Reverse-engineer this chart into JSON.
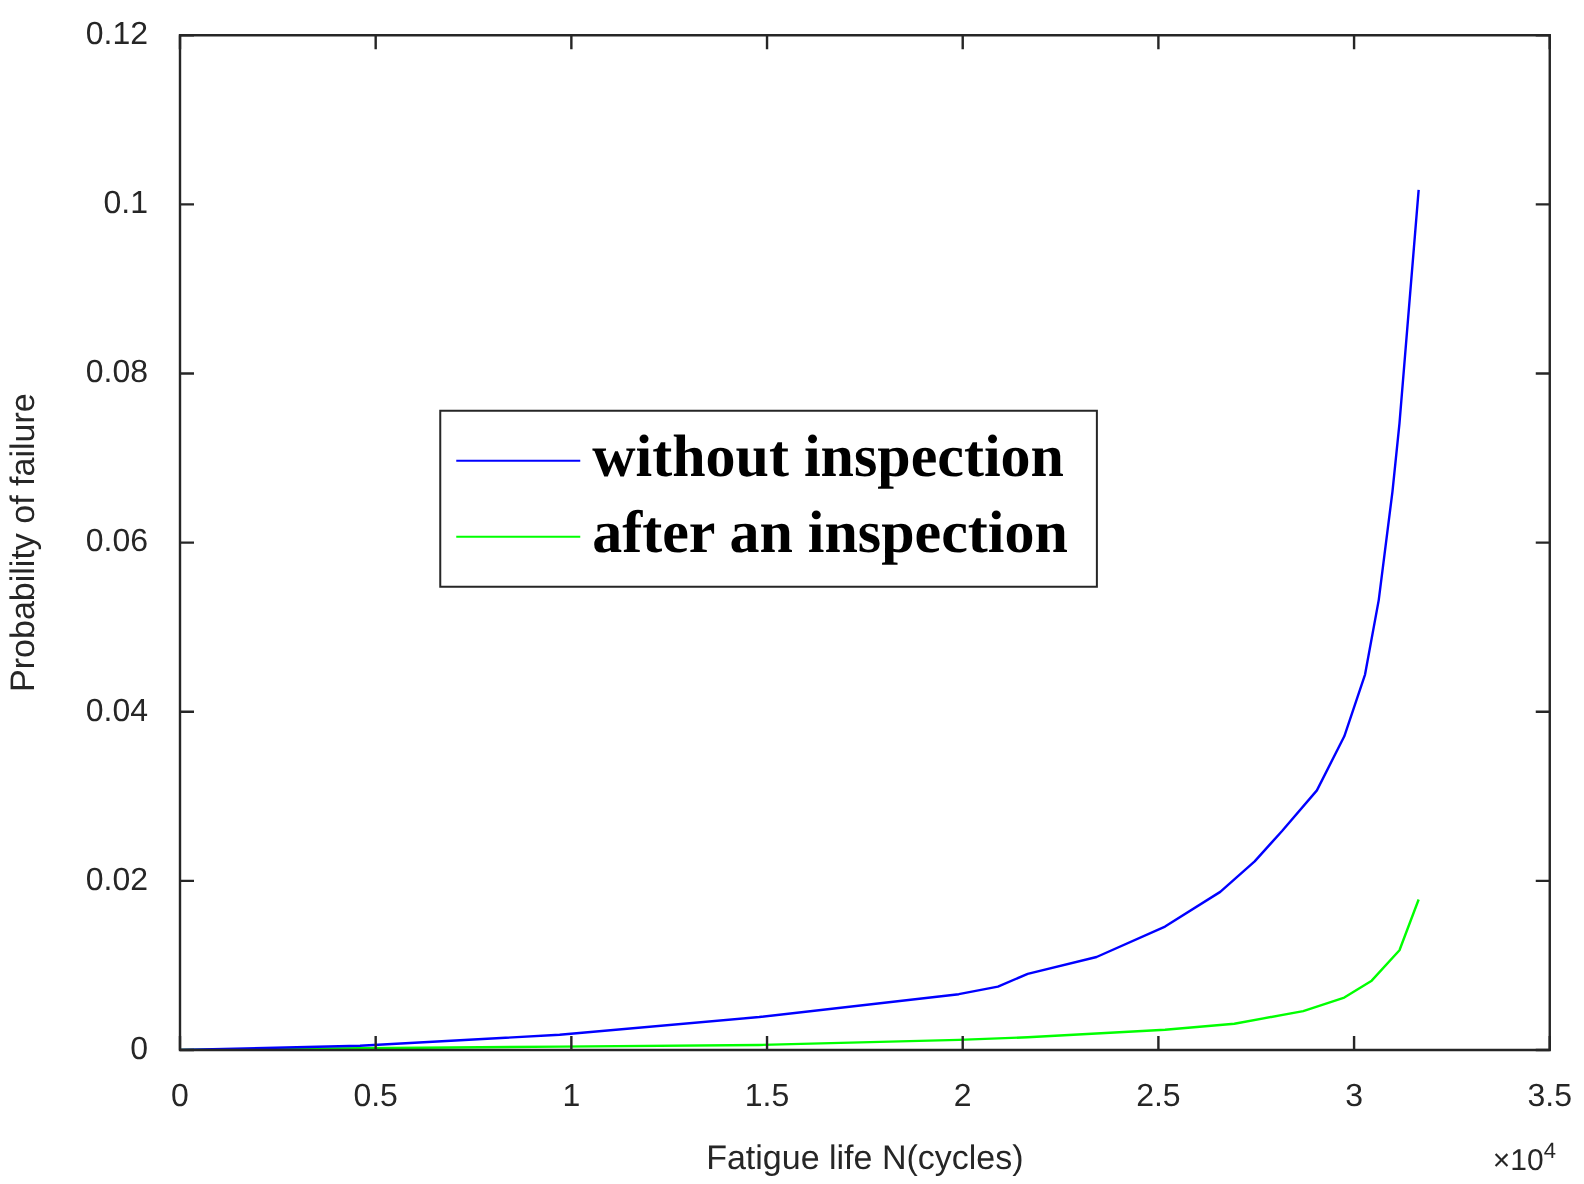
{
  "chart_data": {
    "type": "line",
    "xlabel": "Fatigue life N(cycles)",
    "ylabel": "Probability of failure",
    "xlim": [
      0,
      3.5
    ],
    "xticks": [
      0,
      0.5,
      1,
      1.5,
      2,
      2.5,
      3,
      3.5
    ],
    "ylim": [
      0,
      0.12
    ],
    "yticks": [
      0,
      0.02,
      0.04,
      0.06,
      0.08,
      0.1,
      0.12
    ],
    "grid": false,
    "legend": "left",
    "marker": "none",
    "line_style": "solid",
    "annotations": [
      "×10$^{4}$"
    ],
    "series": [
      {
        "name": "without inspection",
        "color": "#0000ff",
        "x": [
          0,
          0.46,
          0.97,
          1.48,
          1.99,
          2.09,
          2.166,
          2.342,
          2.517,
          2.658,
          2.746,
          2.816,
          2.905,
          2.975,
          3.028,
          3.063,
          3.098,
          3.116,
          3.165
        ],
        "values": [
          0,
          0.0005,
          0.0018,
          0.0039,
          0.0066,
          0.0075,
          0.009,
          0.011,
          0.0146,
          0.0187,
          0.0223,
          0.0259,
          0.0307,
          0.0371,
          0.0444,
          0.0532,
          0.066,
          0.0741,
          0.1017
        ]
      },
      {
        "name": "after an inspection",
        "color": "#00ff00",
        "x": [
          0,
          0.46,
          0.97,
          1.48,
          1.99,
          2.166,
          2.517,
          2.694,
          2.87,
          2.975,
          3.045,
          3.116,
          3.165
        ],
        "values": [
          0,
          0.0002,
          0.0004,
          0.0006,
          0.0012,
          0.0015,
          0.0024,
          0.0031,
          0.0046,
          0.0062,
          0.0082,
          0.0118,
          0.0178
        ]
      }
    ]
  }
}
